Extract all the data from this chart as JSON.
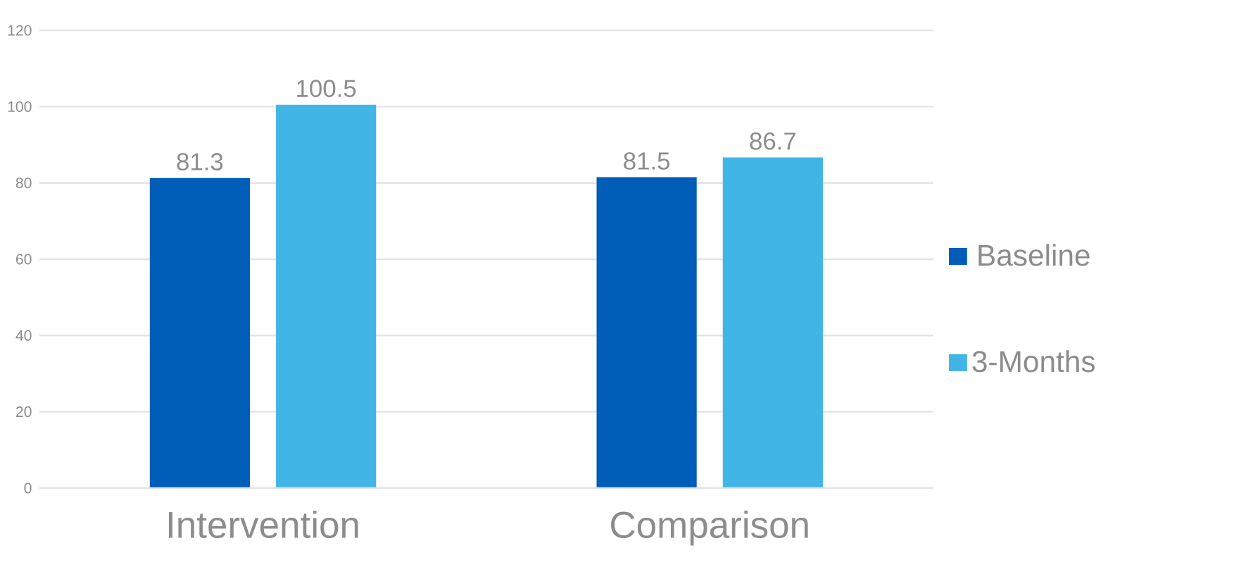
{
  "chart_data": {
    "type": "bar",
    "categories": [
      "Intervention",
      "Comparison"
    ],
    "series": [
      {
        "name": "Baseline",
        "color": "#005eb8",
        "values": [
          81.3,
          81.5
        ]
      },
      {
        "name": "3-Months",
        "color": "#41b6e6",
        "values": [
          100.5,
          86.7
        ]
      }
    ],
    "ylim": [
      0,
      120
    ],
    "yticks": [
      0,
      20,
      40,
      60,
      80,
      100,
      120
    ],
    "grid": "y",
    "legend": "right",
    "data_labels": true
  }
}
